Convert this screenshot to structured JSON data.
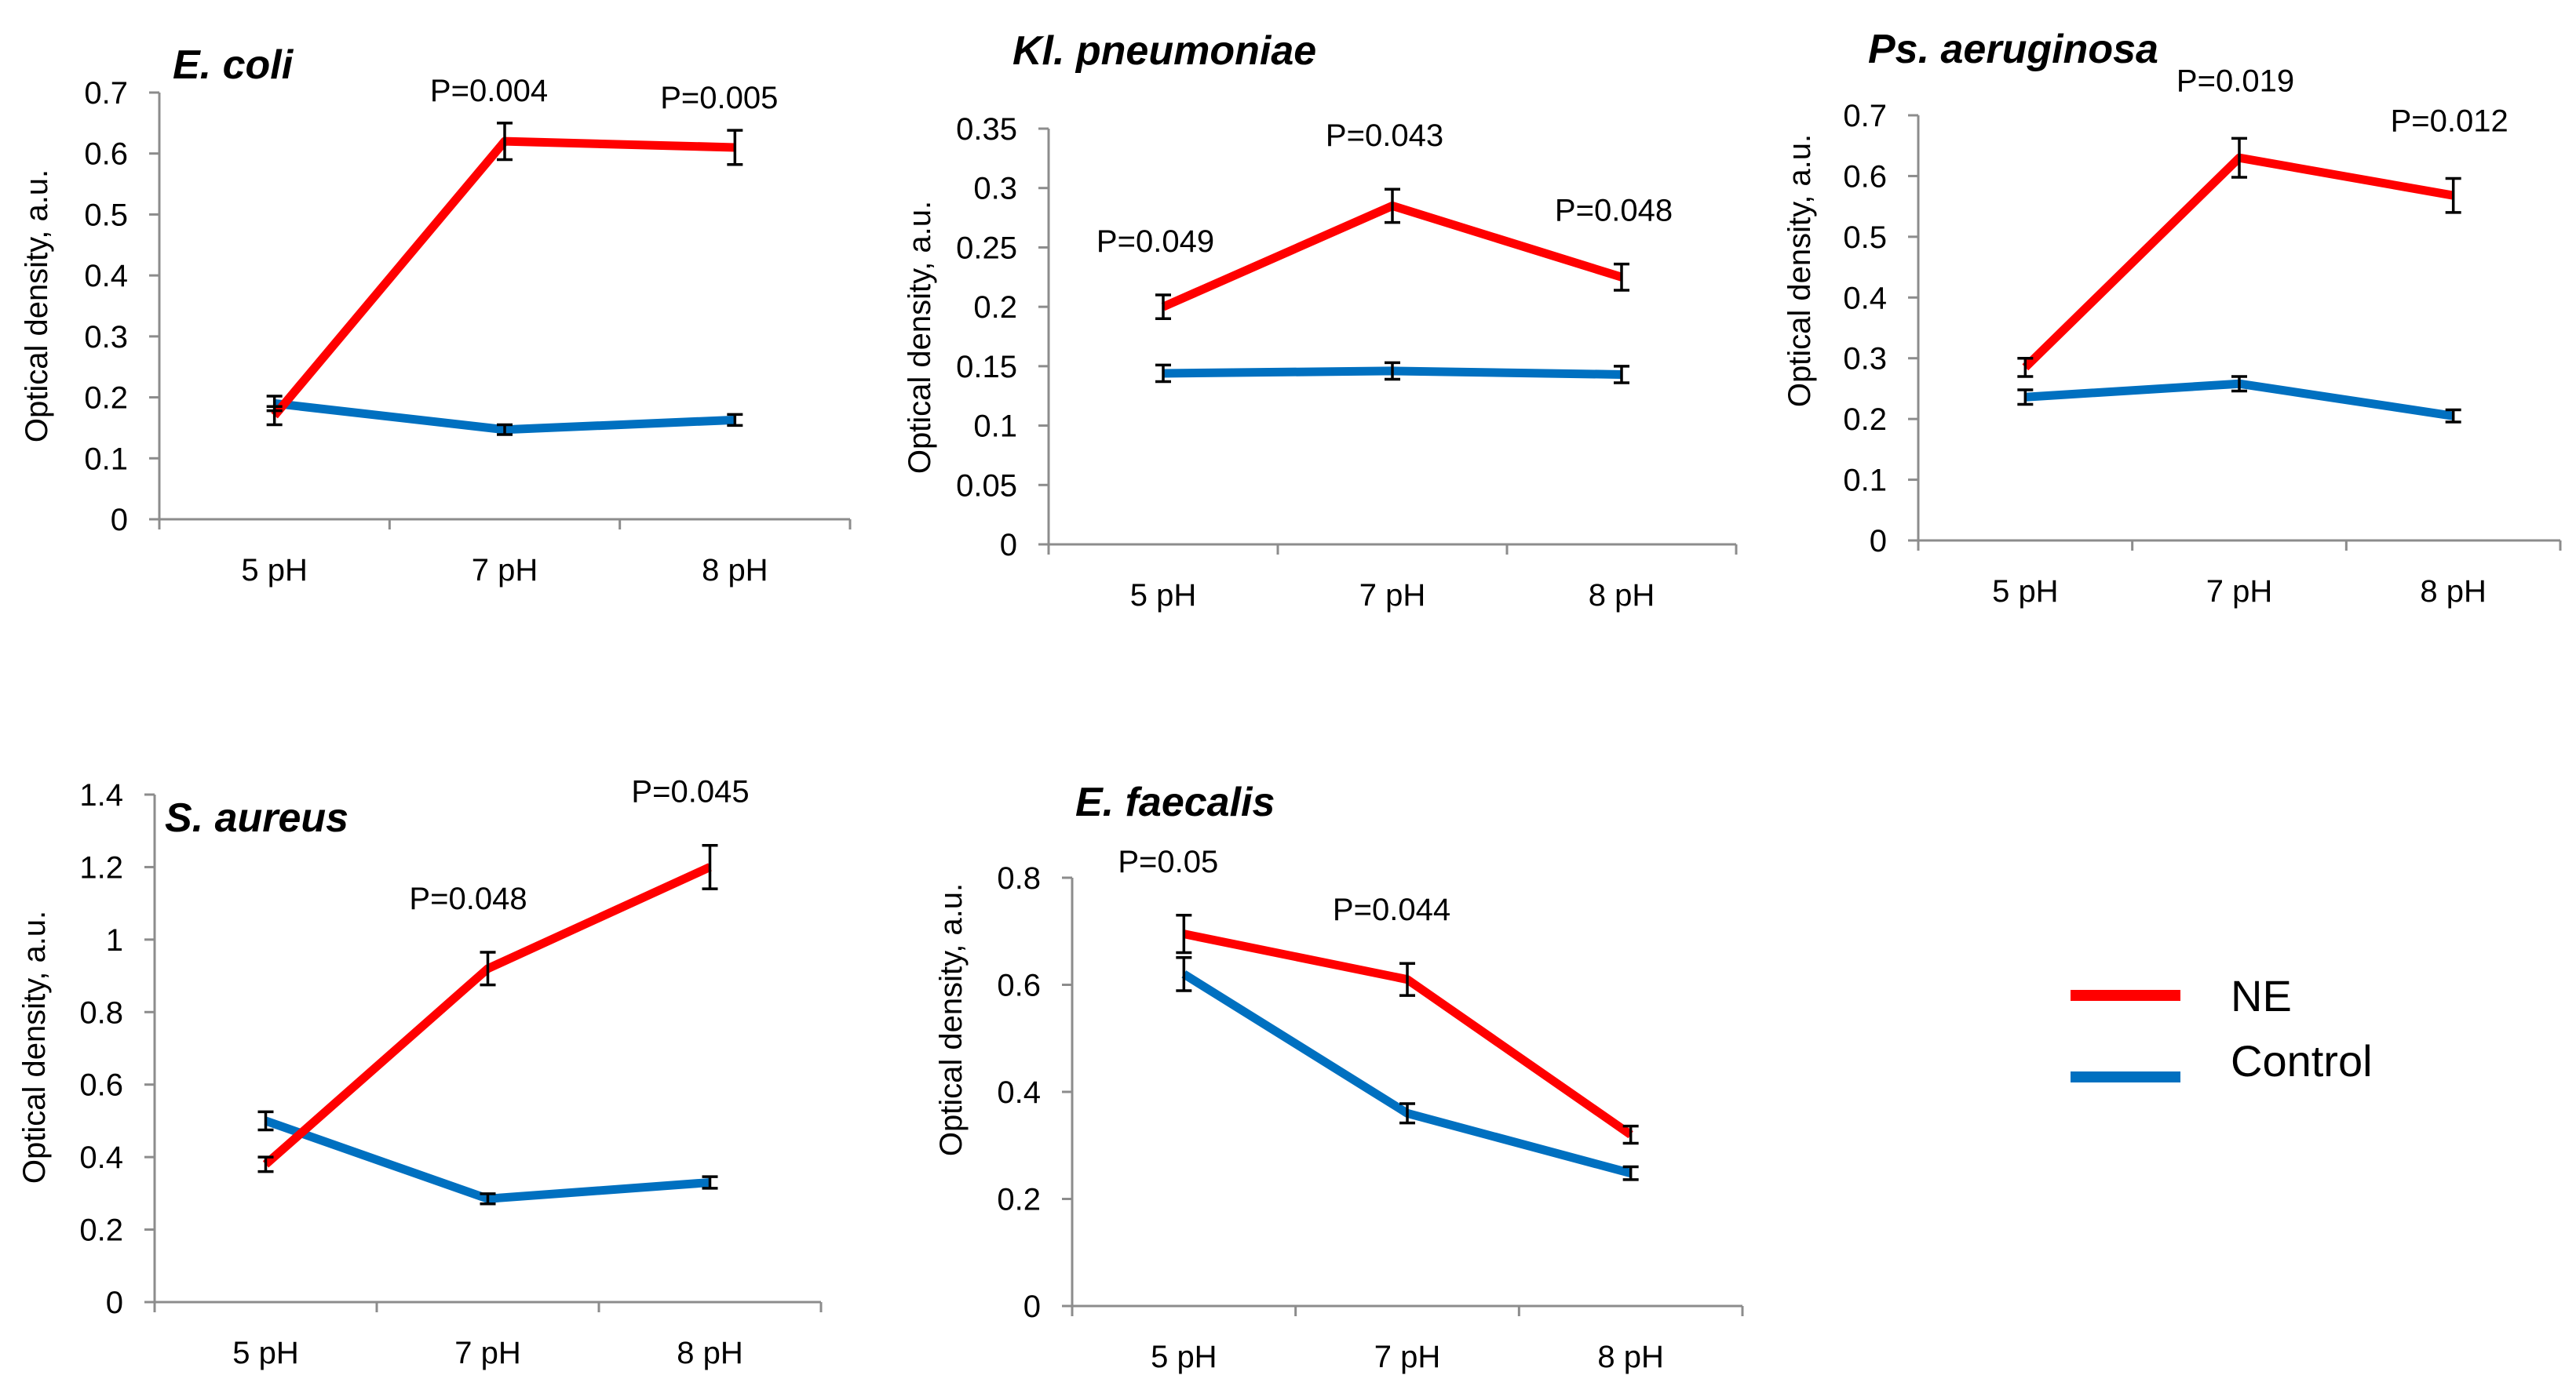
{
  "colors": {
    "ne": "#ff0000",
    "control": "#0070c0"
  },
  "legend": [
    {
      "key": "ne",
      "label": "NE"
    },
    {
      "key": "control",
      "label": "Control"
    }
  ],
  "chart_data": [
    {
      "type": "line",
      "title": "E. coli",
      "xlabel": "",
      "ylabel": "Optical density, a.u.",
      "categories": [
        "5 pH",
        "7 pH",
        "8 pH"
      ],
      "ylim": [
        0,
        0.7
      ],
      "yticks": [
        0,
        0.1,
        0.2,
        0.3,
        0.4,
        0.5,
        0.6,
        0.7
      ],
      "series": [
        {
          "name": "NE",
          "key": "ne",
          "values": [
            0.17,
            0.62,
            0.61
          ],
          "errors": [
            0.015,
            0.03,
            0.028
          ]
        },
        {
          "name": "Control",
          "key": "control",
          "values": [
            0.19,
            0.147,
            0.163
          ],
          "errors": [
            0.012,
            0.008,
            0.009
          ]
        }
      ],
      "annotations": [
        {
          "category": 1,
          "text": "P=0.004"
        },
        {
          "category": 2,
          "text": "P=0.005"
        }
      ]
    },
    {
      "type": "line",
      "title": "Kl. pneumoniae",
      "xlabel": "",
      "ylabel": "Optical density, a.u.",
      "categories": [
        "5 pH",
        "7 pH",
        "8 pH"
      ],
      "ylim": [
        0,
        0.35
      ],
      "yticks": [
        0,
        0.05,
        0.1,
        0.15,
        0.2,
        0.25,
        0.3,
        0.35
      ],
      "series": [
        {
          "name": "NE",
          "key": "ne",
          "values": [
            0.2,
            0.285,
            0.225
          ],
          "errors": [
            0.01,
            0.014,
            0.011
          ]
        },
        {
          "name": "Control",
          "key": "control",
          "values": [
            0.144,
            0.146,
            0.143
          ],
          "errors": [
            0.007,
            0.007,
            0.007
          ]
        }
      ],
      "annotations": [
        {
          "category": 0,
          "text": "P=0.049"
        },
        {
          "category": 1,
          "text": "P=0.043"
        },
        {
          "category": 2,
          "text": "P=0.048"
        }
      ]
    },
    {
      "type": "line",
      "title": "Ps. aeruginosa",
      "xlabel": "",
      "ylabel": "Optical density, a.u.",
      "categories": [
        "5 pH",
        "7 pH",
        "8 pH"
      ],
      "ylim": [
        0,
        0.7
      ],
      "yticks": [
        0,
        0.1,
        0.2,
        0.3,
        0.4,
        0.5,
        0.6,
        0.7
      ],
      "series": [
        {
          "name": "NE",
          "key": "ne",
          "values": [
            0.285,
            0.63,
            0.568
          ],
          "errors": [
            0.015,
            0.032,
            0.028
          ]
        },
        {
          "name": "Control",
          "key": "control",
          "values": [
            0.236,
            0.258,
            0.205
          ],
          "errors": [
            0.012,
            0.012,
            0.01
          ]
        }
      ],
      "annotations": [
        {
          "category": 1,
          "text": "P=0.019"
        },
        {
          "category": 2,
          "text": "P=0.012"
        }
      ]
    },
    {
      "type": "line",
      "title": "S. aureus",
      "xlabel": "",
      "ylabel": "Optical density, a.u.",
      "categories": [
        "5 pH",
        "7 pH",
        "8 pH"
      ],
      "ylim": [
        0,
        1.4
      ],
      "yticks": [
        0,
        0.2,
        0.4,
        0.6,
        0.8,
        1,
        1.2,
        1.4
      ],
      "series": [
        {
          "name": "NE",
          "key": "ne",
          "values": [
            0.38,
            0.92,
            1.2
          ],
          "errors": [
            0.02,
            0.045,
            0.06
          ]
        },
        {
          "name": "Control",
          "key": "control",
          "values": [
            0.5,
            0.285,
            0.33
          ],
          "errors": [
            0.025,
            0.014,
            0.016
          ]
        }
      ],
      "annotations": [
        {
          "category": 1,
          "text": "P=0.048"
        },
        {
          "category": 2,
          "text": "P=0.045"
        }
      ]
    },
    {
      "type": "line",
      "title": "E. faecalis",
      "xlabel": "",
      "ylabel": "Optical density, a.u.",
      "categories": [
        "5 pH",
        "7 pH",
        "8 pH"
      ],
      "ylim": [
        0,
        0.8
      ],
      "yticks": [
        0,
        0.2,
        0.4,
        0.6,
        0.8
      ],
      "series": [
        {
          "name": "NE",
          "key": "ne",
          "values": [
            0.695,
            0.61,
            0.32
          ],
          "errors": [
            0.035,
            0.03,
            0.016
          ]
        },
        {
          "name": "Control",
          "key": "control",
          "values": [
            0.62,
            0.36,
            0.248
          ],
          "errors": [
            0.031,
            0.018,
            0.012
          ]
        }
      ],
      "annotations": [
        {
          "category": 0,
          "text": "P=0.05"
        },
        {
          "category": 1,
          "text": "P=0.044"
        }
      ]
    }
  ]
}
